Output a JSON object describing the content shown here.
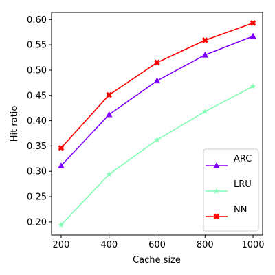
{
  "chart_data": {
    "type": "line",
    "title": "",
    "xlabel": "Cache size",
    "ylabel": "Hit ratio",
    "x": [
      200,
      400,
      600,
      800,
      1000
    ],
    "xlim": [
      160,
      1040
    ],
    "ylim": [
      0.174,
      0.614
    ],
    "xticks": [
      "200",
      "400",
      "600",
      "800",
      "1000"
    ],
    "yticks": [
      "0.20",
      "0.25",
      "0.30",
      "0.35",
      "0.40",
      "0.45",
      "0.50",
      "0.55",
      "0.60"
    ],
    "grid": false,
    "legend_position": "lower-right",
    "series": [
      {
        "name": "ARC",
        "color": "#8000ff",
        "marker": "triangle",
        "values": [
          0.311,
          0.412,
          0.479,
          0.53,
          0.567
        ]
      },
      {
        "name": "LRU",
        "color": "#80ffb4",
        "marker": "star",
        "values": [
          0.194,
          0.294,
          0.362,
          0.418,
          0.468
        ]
      },
      {
        "name": "NN",
        "color": "#ff0000",
        "marker": "x",
        "values": [
          0.346,
          0.451,
          0.515,
          0.559,
          0.593
        ]
      }
    ]
  }
}
